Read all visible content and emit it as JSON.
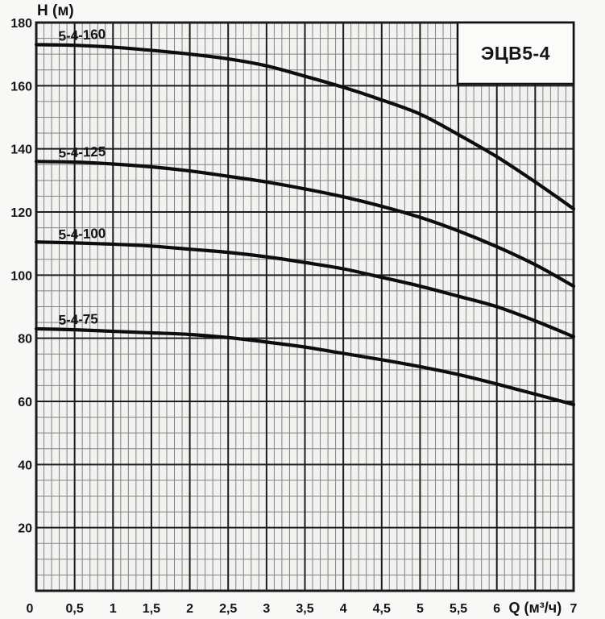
{
  "title_box": {
    "label": "ЭЦВ5-4"
  },
  "axes": {
    "y_label": "H (м)",
    "x_label": "Q (м³/ч)",
    "origin_label": "0"
  },
  "style": {
    "page_bg": "#f8f8f6",
    "plot_bg": "#f2f2f0",
    "grid_minor": "#828282",
    "grid_major": "#1c1c1c",
    "border": "#111111",
    "curve_color": "#0d0d0d",
    "box_bg": "#fbfbfa"
  },
  "chart_data": {
    "type": "line",
    "title": "ЭЦВ5-4",
    "xlabel": "Q (м³/ч)",
    "ylabel": "H (м)",
    "xlim": [
      0,
      7
    ],
    "ylim": [
      0,
      180
    ],
    "x_major_step": 0.5,
    "x_minor_step": 0.1,
    "y_major_step": 20,
    "y_minor_step": 5,
    "grid": "on",
    "xlabel_position": 6.5,
    "x_ticks": [
      {
        "v": 0.5,
        "label": "0,5"
      },
      {
        "v": 1,
        "label": "1"
      },
      {
        "v": 1.5,
        "label": "1,5"
      },
      {
        "v": 2,
        "label": "2"
      },
      {
        "v": 2.5,
        "label": "2,5"
      },
      {
        "v": 3,
        "label": "3"
      },
      {
        "v": 3.5,
        "label": "3,5"
      },
      {
        "v": 4,
        "label": "4"
      },
      {
        "v": 4.5,
        "label": "4,5"
      },
      {
        "v": 5,
        "label": "5"
      },
      {
        "v": 5.5,
        "label": "5,5"
      },
      {
        "v": 6,
        "label": "6"
      },
      {
        "v": 7,
        "label": "7"
      }
    ],
    "y_ticks": [
      {
        "v": 180,
        "label": "180"
      },
      {
        "v": 160,
        "label": "160"
      },
      {
        "v": 140,
        "label": "140"
      },
      {
        "v": 120,
        "label": "120"
      },
      {
        "v": 100,
        "label": "100"
      },
      {
        "v": 80,
        "label": "80"
      },
      {
        "v": 60,
        "label": "60"
      },
      {
        "v": 40,
        "label": "40"
      },
      {
        "v": 20,
        "label": "20"
      }
    ],
    "series": [
      {
        "name": "5-4-160",
        "label_pos": [
          0.6,
          174.6
        ],
        "label_rot": -3,
        "points": [
          [
            0,
            173
          ],
          [
            0.5,
            172.8
          ],
          [
            1,
            172.2
          ],
          [
            1.5,
            171.2
          ],
          [
            2,
            170
          ],
          [
            2.5,
            168.5
          ],
          [
            3,
            166.3
          ],
          [
            3.5,
            163
          ],
          [
            4,
            159.5
          ],
          [
            4.5,
            155.5
          ],
          [
            5,
            151
          ],
          [
            5.5,
            144.5
          ],
          [
            6,
            137.5
          ],
          [
            6.5,
            129.5
          ],
          [
            7,
            121
          ]
        ]
      },
      {
        "name": "5-4-125",
        "label_pos": [
          0.6,
          137.5
        ],
        "label_rot": -2,
        "points": [
          [
            0,
            136
          ],
          [
            0.5,
            135.8
          ],
          [
            1,
            135.2
          ],
          [
            1.5,
            134.3
          ],
          [
            2,
            133
          ],
          [
            2.5,
            131.3
          ],
          [
            3,
            129.5
          ],
          [
            3.5,
            127.3
          ],
          [
            4,
            124.8
          ],
          [
            4.5,
            121.8
          ],
          [
            5,
            118.3
          ],
          [
            5.5,
            114
          ],
          [
            6,
            109
          ],
          [
            6.5,
            103.3
          ],
          [
            7,
            96.5
          ]
        ]
      },
      {
        "name": "5-4-100",
        "label_pos": [
          0.6,
          111.6
        ],
        "label_rot": -2,
        "points": [
          [
            0,
            110.5
          ],
          [
            0.5,
            110.2
          ],
          [
            1,
            109.8
          ],
          [
            1.5,
            109.2
          ],
          [
            2,
            108.2
          ],
          [
            2.5,
            107.2
          ],
          [
            3,
            105.8
          ],
          [
            3.5,
            104
          ],
          [
            4,
            102
          ],
          [
            4.5,
            99.3
          ],
          [
            5,
            96.5
          ],
          [
            5.5,
            93.3
          ],
          [
            6,
            90
          ],
          [
            6.5,
            85.5
          ],
          [
            7,
            80.5
          ]
        ]
      },
      {
        "name": "5-4-75",
        "label_pos": [
          0.55,
          84.5
        ],
        "label_rot": -2,
        "points": [
          [
            0,
            83
          ],
          [
            0.5,
            82.7
          ],
          [
            1,
            82.2
          ],
          [
            1.5,
            81.7
          ],
          [
            2,
            81.2
          ],
          [
            2.5,
            80.2
          ],
          [
            3,
            78.8
          ],
          [
            3.5,
            77.2
          ],
          [
            4,
            75.2
          ],
          [
            4.5,
            73.2
          ],
          [
            5,
            71
          ],
          [
            5.5,
            68.5
          ],
          [
            6,
            65.5
          ],
          [
            6.5,
            62.3
          ],
          [
            7,
            59
          ]
        ]
      }
    ]
  }
}
